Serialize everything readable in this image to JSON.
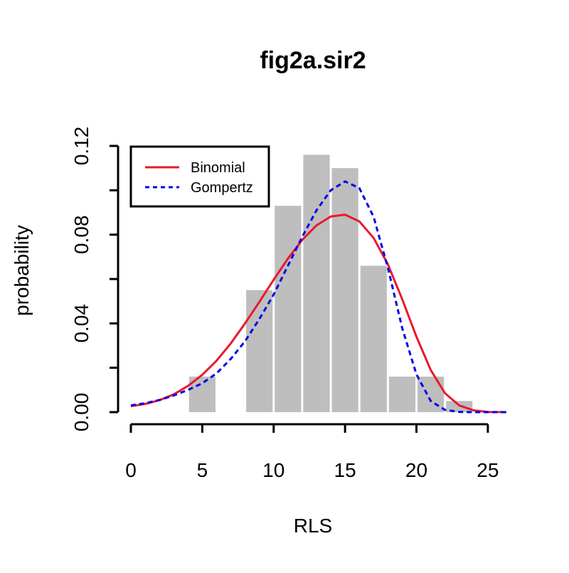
{
  "chart_data": {
    "type": "bar",
    "title": "fig2a.sir2",
    "xlabel": "RLS",
    "ylabel": "probability",
    "xlim": [
      0,
      26.5
    ],
    "ylim": [
      0,
      0.12
    ],
    "x_ticks": [
      "0",
      "5",
      "10",
      "15",
      "20",
      "25"
    ],
    "y_ticks": [
      "0.00",
      "0.04",
      "0.08",
      "0.12"
    ],
    "histogram": {
      "color": "#bebebe",
      "bins": [
        {
          "x0": 0,
          "x1": 2,
          "value": 0
        },
        {
          "x0": 2,
          "x1": 4,
          "value": 0
        },
        {
          "x0": 4,
          "x1": 6,
          "value": 0.016
        },
        {
          "x0": 6,
          "x1": 8,
          "value": 0
        },
        {
          "x0": 8,
          "x1": 10,
          "value": 0.055
        },
        {
          "x0": 10,
          "x1": 12,
          "value": 0.093
        },
        {
          "x0": 12,
          "x1": 14,
          "value": 0.116
        },
        {
          "x0": 14,
          "x1": 16,
          "value": 0.11
        },
        {
          "x0": 16,
          "x1": 18,
          "value": 0.066
        },
        {
          "x0": 18,
          "x1": 20,
          "value": 0.016
        },
        {
          "x0": 20,
          "x1": 22,
          "value": 0.016
        },
        {
          "x0": 22,
          "x1": 24,
          "value": 0.005
        }
      ]
    },
    "series": [
      {
        "name": "Binomial",
        "color": "#e8192c",
        "style": "solid",
        "points": [
          [
            0,
            0.0027
          ],
          [
            1,
            0.0037
          ],
          [
            2,
            0.0054
          ],
          [
            3,
            0.008
          ],
          [
            4,
            0.0118
          ],
          [
            5,
            0.0168
          ],
          [
            6,
            0.0232
          ],
          [
            7,
            0.031
          ],
          [
            8,
            0.04
          ],
          [
            9,
            0.0497
          ],
          [
            10,
            0.0597
          ],
          [
            11,
            0.0692
          ],
          [
            12,
            0.0776
          ],
          [
            13,
            0.0842
          ],
          [
            14,
            0.0882
          ],
          [
            15,
            0.089
          ],
          [
            16,
            0.086
          ],
          [
            17,
            0.0785
          ],
          [
            18,
            0.0666
          ],
          [
            19,
            0.051
          ],
          [
            20,
            0.034
          ],
          [
            21,
            0.019
          ],
          [
            22,
            0.0085
          ],
          [
            23,
            0.003
          ],
          [
            24,
            0.0008
          ],
          [
            25,
            0.0001
          ],
          [
            26.3,
            0.0
          ]
        ]
      },
      {
        "name": "Gompertz",
        "color": "#0000ee",
        "style": "dashed",
        "points": [
          [
            0,
            0.003
          ],
          [
            1,
            0.004
          ],
          [
            2,
            0.0055
          ],
          [
            3,
            0.0075
          ],
          [
            4,
            0.01
          ],
          [
            5,
            0.013
          ],
          [
            6,
            0.0175
          ],
          [
            7,
            0.024
          ],
          [
            8,
            0.032
          ],
          [
            9,
            0.042
          ],
          [
            10,
            0.053
          ],
          [
            11,
            0.066
          ],
          [
            12,
            0.079
          ],
          [
            13,
            0.091
          ],
          [
            14,
            0.1
          ],
          [
            15,
            0.104
          ],
          [
            16,
            0.101
          ],
          [
            17,
            0.088
          ],
          [
            18,
            0.065
          ],
          [
            19,
            0.038
          ],
          [
            20,
            0.017
          ],
          [
            21,
            0.005
          ],
          [
            22,
            0.001
          ],
          [
            23,
            0.0001
          ],
          [
            24,
            0.0
          ],
          [
            26.3,
            0.0
          ]
        ]
      }
    ],
    "legend": {
      "position": "top-left",
      "entries": [
        "Binomial",
        "Gompertz"
      ]
    },
    "grid": false
  }
}
